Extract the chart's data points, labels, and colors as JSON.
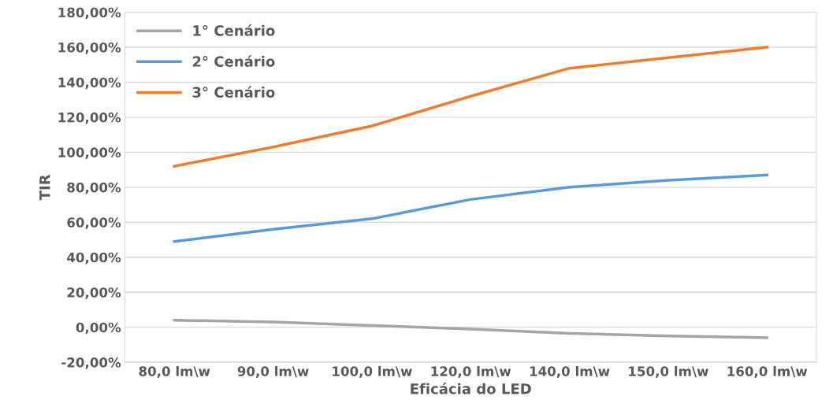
{
  "chart_data": {
    "type": "line",
    "xlabel": "Eficácia do LED",
    "ylabel": "TIR",
    "categories": [
      "80,0 lm\\w",
      "90,0 lm\\w",
      "100,0 lm\\w",
      "120,0 lm\\w",
      "140,0 lm\\w",
      "150,0 lm\\w",
      "160,0 lm\\w"
    ],
    "series": [
      {
        "name": "1° Cenário",
        "color": "#a5a5a5",
        "values": [
          4,
          3,
          1,
          -1,
          -3.5,
          -5,
          -6
        ]
      },
      {
        "name": "2° Cenário",
        "color": "#5b9bd5",
        "values": [
          49,
          56,
          62,
          73,
          80,
          84,
          87
        ]
      },
      {
        "name": "3° Cenário",
        "color": "#ed7d31",
        "values": [
          92,
          103,
          115,
          132,
          148,
          154,
          160
        ]
      }
    ],
    "ylim": [
      -20,
      180
    ],
    "yticks": [
      {
        "value": -20,
        "label": "-20,00%"
      },
      {
        "value": 0,
        "label": "0,00%"
      },
      {
        "value": 20,
        "label": "20,00%"
      },
      {
        "value": 40,
        "label": "40,00%"
      },
      {
        "value": 60,
        "label": "60,00%"
      },
      {
        "value": 80,
        "label": "80,00%"
      },
      {
        "value": 100,
        "label": "100,00%"
      },
      {
        "value": 120,
        "label": "120,00%"
      },
      {
        "value": 140,
        "label": "140,00%"
      },
      {
        "value": 160,
        "label": "160,00%"
      },
      {
        "value": 180,
        "label": "180,00%"
      }
    ],
    "grid": "y",
    "legend": "top left",
    "marker": "none",
    "line_style": "solid"
  }
}
